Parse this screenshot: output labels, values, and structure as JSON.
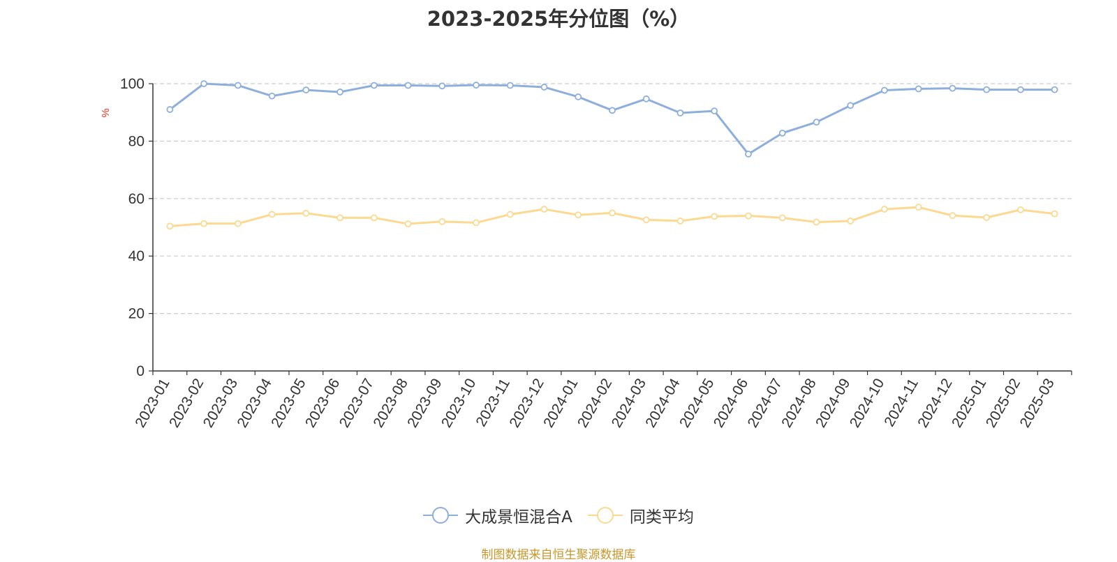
{
  "chart_data": {
    "type": "line",
    "title": "2023-2025年分位图（%）",
    "ylabel": "%",
    "xlabel": "",
    "ylim": [
      0,
      100
    ],
    "yticks": [
      0,
      20,
      40,
      60,
      80,
      100
    ],
    "grid": true,
    "legend_position": "bottom-center",
    "categories": [
      "2023-01",
      "2023-02",
      "2023-03",
      "2023-04",
      "2023-05",
      "2023-06",
      "2023-07",
      "2023-08",
      "2023-09",
      "2023-10",
      "2023-11",
      "2023-12",
      "2024-01",
      "2024-02",
      "2024-03",
      "2024-04",
      "2024-05",
      "2024-06",
      "2024-07",
      "2024-08",
      "2024-09",
      "2024-10",
      "2024-11",
      "2024-12",
      "2025-01",
      "2025-02",
      "2025-03"
    ],
    "series": [
      {
        "name": "大成景恒混合A",
        "color": "#8eaedb",
        "values": [
          91.0,
          100.0,
          99.4,
          95.7,
          97.8,
          97.1,
          99.4,
          99.4,
          99.2,
          99.5,
          99.4,
          98.8,
          95.4,
          90.7,
          94.7,
          89.8,
          90.5,
          75.5,
          82.8,
          86.6,
          92.4,
          97.7,
          98.2,
          98.4,
          97.9,
          97.9,
          97.9
        ]
      },
      {
        "name": "同类平均",
        "color": "#fbd990",
        "values": [
          50.4,
          51.3,
          51.3,
          54.5,
          54.9,
          53.3,
          53.3,
          51.2,
          52.0,
          51.6,
          54.5,
          56.3,
          54.3,
          55.0,
          52.6,
          52.2,
          53.8,
          54.0,
          53.3,
          51.8,
          52.2,
          56.3,
          57.0,
          54.1,
          53.4,
          56.1,
          54.7
        ]
      }
    ]
  },
  "source_note": "制图数据来自恒生聚源数据库"
}
